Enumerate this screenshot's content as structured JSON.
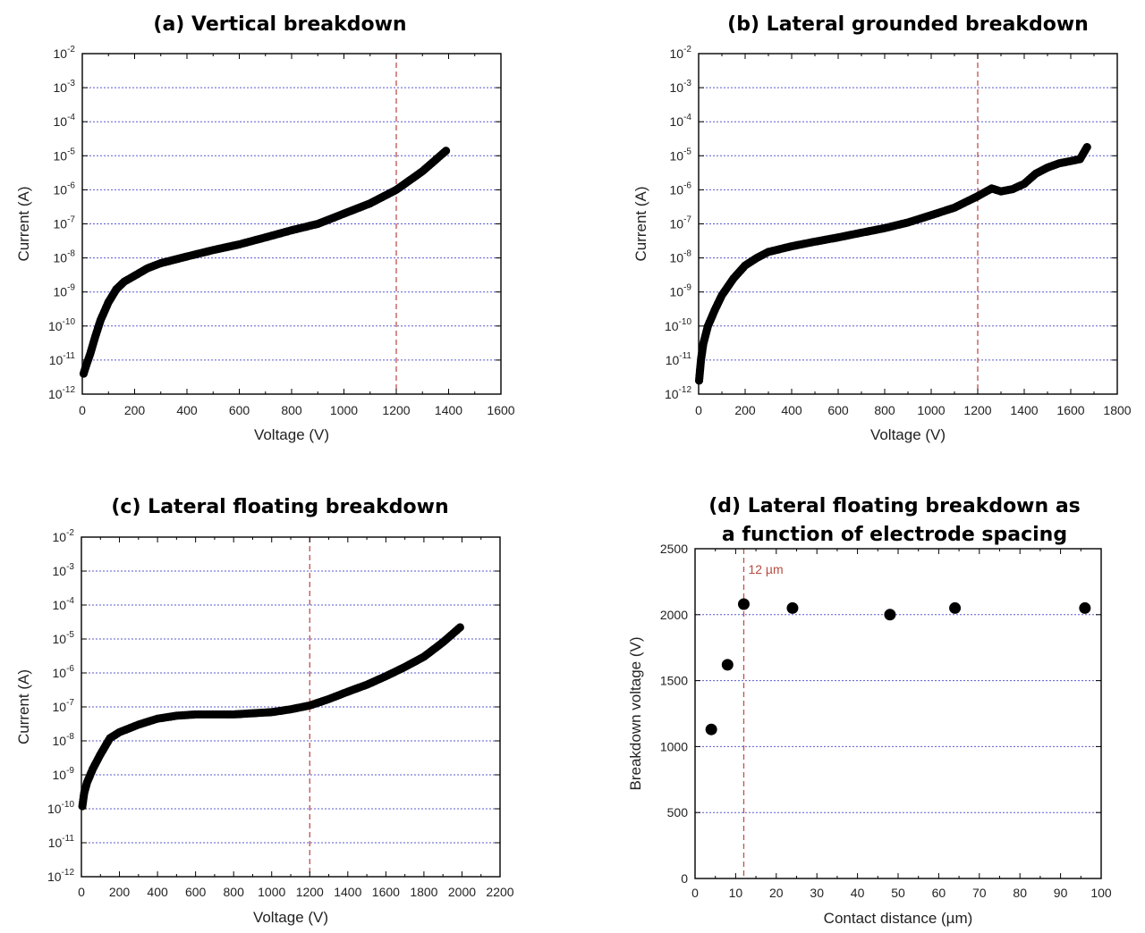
{
  "chart_data": [
    {
      "type": "scatter",
      "title": "(a) Vertical breakdown",
      "xlabel": "Voltage (V)",
      "ylabel": "Current (A)",
      "xlim": [
        0,
        1600
      ],
      "xticks": [
        0,
        200,
        400,
        600,
        800,
        1000,
        1200,
        1400,
        1600
      ],
      "yscale": "log",
      "ylim": [
        1e-12,
        0.01
      ],
      "yticks": [
        "10-12",
        "10-11",
        "10-10",
        "10-9",
        "10-8",
        "10-7",
        "10-6",
        "10-5",
        "10-4",
        "10-3",
        "10-2"
      ],
      "grid": "horizontal dotted",
      "vline_x": 1200,
      "curve": [
        [
          5,
          4e-12
        ],
        [
          15,
          7e-12
        ],
        [
          30,
          1.5e-11
        ],
        [
          50,
          5e-11
        ],
        [
          70,
          1.5e-10
        ],
        [
          100,
          5e-10
        ],
        [
          130,
          1.2e-09
        ],
        [
          160,
          2e-09
        ],
        [
          200,
          3e-09
        ],
        [
          250,
          5e-09
        ],
        [
          300,
          7e-09
        ],
        [
          400,
          1.1e-08
        ],
        [
          500,
          1.7e-08
        ],
        [
          600,
          2.5e-08
        ],
        [
          700,
          4e-08
        ],
        [
          800,
          6.5e-08
        ],
        [
          900,
          1e-07
        ],
        [
          1000,
          2e-07
        ],
        [
          1100,
          4e-07
        ],
        [
          1200,
          1e-06
        ],
        [
          1300,
          3.5e-06
        ],
        [
          1390,
          1.4e-05
        ]
      ]
    },
    {
      "type": "scatter",
      "title": "(b) Lateral grounded breakdown",
      "xlabel": "Voltage (V)",
      "ylabel": "Current (A)",
      "xlim": [
        0,
        1800
      ],
      "xticks": [
        0,
        200,
        400,
        600,
        800,
        1000,
        1200,
        1400,
        1600,
        1800
      ],
      "yscale": "log",
      "ylim": [
        1e-12,
        0.01
      ],
      "yticks": [
        "10-12",
        "10-11",
        "10-10",
        "10-9",
        "10-8",
        "10-7",
        "10-6",
        "10-5",
        "10-4",
        "10-3",
        "10-2"
      ],
      "grid": "horizontal dotted",
      "vline_x": 1200,
      "curve": [
        [
          2,
          2.5e-12
        ],
        [
          10,
          1e-11
        ],
        [
          20,
          3e-11
        ],
        [
          40,
          1e-10
        ],
        [
          70,
          3e-10
        ],
        [
          100,
          8e-10
        ],
        [
          150,
          2.5e-09
        ],
        [
          200,
          6e-09
        ],
        [
          250,
          1e-08
        ],
        [
          300,
          1.5e-08
        ],
        [
          400,
          2.2e-08
        ],
        [
          500,
          3e-08
        ],
        [
          600,
          4e-08
        ],
        [
          700,
          5.5e-08
        ],
        [
          800,
          7.5e-08
        ],
        [
          900,
          1.1e-07
        ],
        [
          1000,
          1.8e-07
        ],
        [
          1100,
          3e-07
        ],
        [
          1200,
          6.5e-07
        ],
        [
          1260,
          1.1e-06
        ],
        [
          1300,
          9e-07
        ],
        [
          1350,
          1.05e-06
        ],
        [
          1400,
          1.5e-06
        ],
        [
          1450,
          3e-06
        ],
        [
          1500,
          4.5e-06
        ],
        [
          1550,
          6e-06
        ],
        [
          1600,
          7e-06
        ],
        [
          1640,
          8e-06
        ],
        [
          1670,
          1.8e-05
        ]
      ]
    },
    {
      "type": "scatter",
      "title": "(c) Lateral floating breakdown",
      "xlabel": "Voltage (V)",
      "ylabel": "Current (A)",
      "xlim": [
        0,
        2200
      ],
      "xticks": [
        0,
        200,
        400,
        600,
        800,
        1000,
        1200,
        1400,
        1600,
        1800,
        2000,
        2200
      ],
      "yscale": "log",
      "ylim": [
        1e-12,
        0.01
      ],
      "yticks": [
        "10-12",
        "10-11",
        "10-10",
        "10-9",
        "10-8",
        "10-7",
        "10-6",
        "10-5",
        "10-4",
        "10-3",
        "10-2"
      ],
      "grid": "horizontal dotted",
      "vline_x": 1200,
      "curve": [
        [
          5,
          1.2e-10
        ],
        [
          15,
          3e-10
        ],
        [
          30,
          6e-10
        ],
        [
          60,
          1.5e-09
        ],
        [
          100,
          4e-09
        ],
        [
          150,
          1.2e-08
        ],
        [
          200,
          1.8e-08
        ],
        [
          300,
          3e-08
        ],
        [
          400,
          4.5e-08
        ],
        [
          500,
          5.5e-08
        ],
        [
          600,
          6e-08
        ],
        [
          700,
          6e-08
        ],
        [
          800,
          6e-08
        ],
        [
          900,
          6.5e-08
        ],
        [
          1000,
          7e-08
        ],
        [
          1100,
          8.5e-08
        ],
        [
          1200,
          1.1e-07
        ],
        [
          1300,
          1.7e-07
        ],
        [
          1400,
          2.8e-07
        ],
        [
          1500,
          4.5e-07
        ],
        [
          1600,
          8e-07
        ],
        [
          1700,
          1.5e-06
        ],
        [
          1800,
          3e-06
        ],
        [
          1900,
          8e-06
        ],
        [
          1990,
          2.2e-05
        ]
      ]
    },
    {
      "type": "scatter",
      "title_line1": "(d) Lateral floating breakdown as",
      "title_line2": "a function of electrode spacing",
      "xlabel": "Contact distance (µm)",
      "ylabel": "Breakdown voltage (V)",
      "xlim": [
        0,
        100
      ],
      "xticks": [
        0,
        10,
        20,
        30,
        40,
        50,
        60,
        70,
        80,
        90,
        100
      ],
      "ylim": [
        0,
        2500
      ],
      "yticks": [
        0,
        500,
        1000,
        1500,
        2000,
        2500
      ],
      "grid": "horizontal dotted",
      "vline_x": 12,
      "vline_label": "12 µm",
      "points": [
        [
          4,
          1130
        ],
        [
          8,
          1620
        ],
        [
          12,
          2080
        ],
        [
          24,
          2050
        ],
        [
          48,
          2000
        ],
        [
          64,
          2050
        ],
        [
          96,
          2050
        ]
      ]
    }
  ]
}
